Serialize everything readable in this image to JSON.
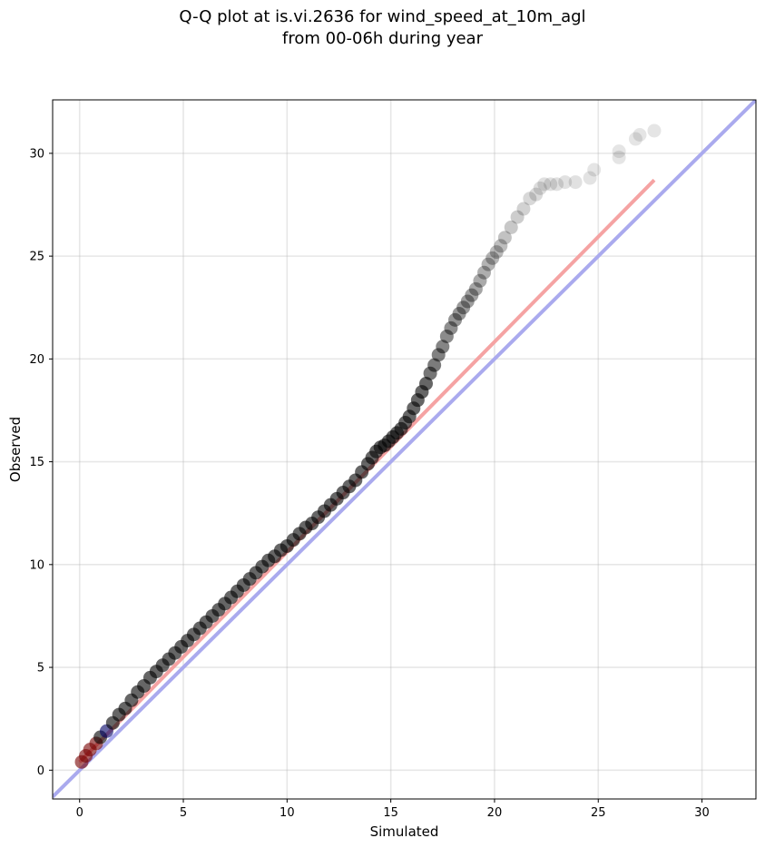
{
  "chart_data": {
    "type": "scatter",
    "title_lines": [
      "Q-Q plot at is.vi.2636 for wind_speed_at_10m_agl",
      "from 00-06h during year"
    ],
    "xlabel": "Simulated",
    "ylabel": "Observed",
    "xlim": [
      -1.3,
      32.6
    ],
    "ylim": [
      -1.4,
      32.6
    ],
    "xticks": [
      0,
      5,
      10,
      15,
      20,
      25,
      30
    ],
    "yticks": [
      0,
      5,
      10,
      15,
      20,
      25,
      30
    ],
    "grid": true,
    "colors": {
      "points": "#000000",
      "identity_line": "#aaaaee",
      "fit_line": "#f5a3a3",
      "highlight_blue": "#000066",
      "highlight_red": "#770000"
    },
    "reference_lines": [
      {
        "kind": "identity",
        "x": [
          -1.3,
          32.6
        ],
        "y": [
          -1.3,
          32.6
        ]
      },
      {
        "kind": "fit",
        "x": [
          0,
          27.7
        ],
        "y": [
          0.4,
          28.7
        ]
      }
    ],
    "series": [
      {
        "x": [
          0.1,
          0.3,
          0.5,
          0.8,
          1.0,
          1.3,
          1.6,
          1.9,
          2.2,
          2.5,
          2.8,
          3.1,
          3.4,
          3.7,
          4.0,
          4.3,
          4.6,
          4.9,
          5.2,
          5.5,
          5.8,
          6.1,
          6.4,
          6.7,
          7.0,
          7.3,
          7.6,
          7.9,
          8.2,
          8.5,
          8.8,
          9.1,
          9.4,
          9.7,
          10.0,
          10.3,
          10.6,
          10.9,
          11.2,
          11.5,
          11.8,
          12.1,
          12.4,
          12.7,
          13.0,
          13.3,
          13.6,
          13.9,
          14.1,
          14.3,
          14.5,
          14.7,
          14.9,
          15.1,
          15.3,
          15.5,
          15.7,
          15.9,
          16.1,
          16.3,
          16.5,
          16.7,
          16.9,
          17.1,
          17.3,
          17.5,
          17.7,
          17.9,
          18.1,
          18.3,
          18.5,
          18.7,
          18.9,
          19.1,
          19.3,
          19.5,
          19.7,
          19.9,
          20.1,
          20.3,
          20.5,
          20.8,
          21.1,
          21.4,
          21.7,
          22.0,
          22.2,
          22.4,
          22.7,
          23.0,
          23.4,
          23.9,
          24.6,
          24.8,
          26.0,
          26.0,
          26.8,
          27.0,
          27.7
        ],
        "y": [
          0.4,
          0.7,
          1.0,
          1.3,
          1.6,
          1.9,
          2.3,
          2.7,
          3.0,
          3.4,
          3.8,
          4.1,
          4.5,
          4.8,
          5.1,
          5.4,
          5.7,
          6.0,
          6.3,
          6.6,
          6.9,
          7.2,
          7.5,
          7.8,
          8.1,
          8.4,
          8.7,
          9.0,
          9.3,
          9.6,
          9.9,
          10.2,
          10.4,
          10.7,
          10.9,
          11.2,
          11.5,
          11.8,
          12.0,
          12.3,
          12.6,
          12.9,
          13.2,
          13.5,
          13.8,
          14.1,
          14.5,
          14.9,
          15.2,
          15.5,
          15.7,
          15.8,
          16.0,
          16.2,
          16.4,
          16.6,
          16.9,
          17.2,
          17.6,
          18.0,
          18.4,
          18.8,
          19.3,
          19.7,
          20.2,
          20.6,
          21.1,
          21.5,
          21.9,
          22.2,
          22.5,
          22.8,
          23.1,
          23.4,
          23.8,
          24.2,
          24.6,
          24.9,
          25.2,
          25.5,
          25.9,
          26.4,
          26.9,
          27.3,
          27.8,
          28.0,
          28.3,
          28.5,
          28.5,
          28.5,
          28.6,
          28.6,
          28.8,
          29.2,
          29.8,
          30.1,
          30.7,
          30.9,
          31.1
        ]
      }
    ]
  }
}
